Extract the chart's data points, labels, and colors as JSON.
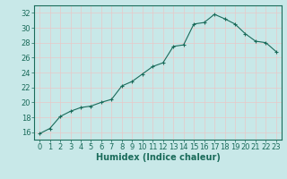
{
  "x": [
    0,
    1,
    2,
    3,
    4,
    5,
    6,
    7,
    8,
    9,
    10,
    11,
    12,
    13,
    14,
    15,
    16,
    17,
    18,
    19,
    20,
    21,
    22,
    23
  ],
  "y": [
    15.8,
    16.5,
    18.1,
    18.8,
    19.3,
    19.5,
    20.0,
    20.4,
    22.2,
    22.8,
    23.8,
    24.8,
    25.3,
    27.5,
    27.7,
    30.5,
    30.7,
    31.8,
    31.2,
    30.5,
    29.2,
    28.2,
    28.0,
    26.8
  ],
  "line_color": "#1a6b5a",
  "marker": "+",
  "marker_size": 3,
  "bg_color": "#c8e8e8",
  "grid_color": "#e8c8c8",
  "xlabel": "Humidex (Indice chaleur)",
  "xlim": [
    -0.5,
    23.5
  ],
  "ylim": [
    15,
    33
  ],
  "yticks": [
    16,
    18,
    20,
    22,
    24,
    26,
    28,
    30,
    32
  ],
  "xticks": [
    0,
    1,
    2,
    3,
    4,
    5,
    6,
    7,
    8,
    9,
    10,
    11,
    12,
    13,
    14,
    15,
    16,
    17,
    18,
    19,
    20,
    21,
    22,
    23
  ],
  "tick_label_fontsize": 6,
  "xlabel_fontsize": 7,
  "tick_color": "#1a6b5a",
  "axis_color": "#1a6b5a",
  "linewidth": 0.8,
  "markeredgewidth": 0.8
}
